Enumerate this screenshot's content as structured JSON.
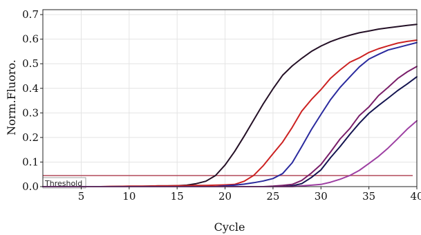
{
  "chart_data": {
    "type": "line",
    "title": "",
    "xlabel": "Cycle",
    "ylabel": "Norm.Fluoro.",
    "xlim": [
      1,
      40
    ],
    "ylim": [
      0,
      0.72
    ],
    "x_ticks": [
      5,
      10,
      15,
      20,
      25,
      30,
      35,
      40
    ],
    "y_ticks": [
      0.0,
      0.1,
      0.2,
      0.3,
      0.4,
      0.5,
      0.6,
      0.7
    ],
    "y_tick_labels": [
      "0.0",
      "0.1",
      "0.2",
      "0.3",
      "0.4",
      "0.5",
      "0.6",
      "0.7"
    ],
    "grid": true,
    "legend": "none",
    "threshold": {
      "label": "Threshold",
      "value": 0.045,
      "color": "#b24a5a"
    },
    "x": [
      1,
      2,
      3,
      4,
      5,
      6,
      7,
      8,
      9,
      10,
      11,
      12,
      13,
      14,
      15,
      16,
      17,
      18,
      19,
      20,
      21,
      22,
      23,
      24,
      25,
      26,
      27,
      28,
      29,
      30,
      31,
      32,
      33,
      34,
      35,
      36,
      37,
      38,
      39,
      40
    ],
    "series": [
      {
        "color": "#241026",
        "values": [
          0,
          0,
          0,
          0,
          0,
          0,
          0,
          0,
          0.001,
          0.001,
          0.001,
          0.002,
          0.003,
          0.003,
          0.004,
          0.006,
          0.012,
          0.022,
          0.045,
          0.088,
          0.143,
          0.206,
          0.272,
          0.338,
          0.398,
          0.453,
          0.491,
          0.522,
          0.55,
          0.572,
          0.59,
          0.604,
          0.616,
          0.626,
          0.633,
          0.641,
          0.646,
          0.651,
          0.656,
          0.66
        ]
      },
      {
        "color": "#cc2222",
        "values": [
          0,
          0,
          0,
          0,
          0,
          0,
          0,
          0.001,
          0.001,
          0.002,
          0.002,
          0.002,
          0.003,
          0.003,
          0.004,
          0.004,
          0.005,
          0.005,
          0.006,
          0.007,
          0.009,
          0.022,
          0.046,
          0.086,
          0.134,
          0.181,
          0.241,
          0.307,
          0.354,
          0.395,
          0.441,
          0.475,
          0.506,
          0.524,
          0.546,
          0.561,
          0.573,
          0.584,
          0.591,
          0.596
        ]
      },
      {
        "color": "#2a2a9e",
        "values": [
          0,
          0,
          0,
          0,
          0,
          0,
          0,
          0,
          0,
          0,
          0,
          0,
          0,
          0,
          0,
          0,
          0,
          0,
          0,
          0.003,
          0.006,
          0.01,
          0.016,
          0.023,
          0.033,
          0.053,
          0.097,
          0.163,
          0.232,
          0.294,
          0.354,
          0.404,
          0.446,
          0.487,
          0.519,
          0.538,
          0.556,
          0.566,
          0.576,
          0.586
        ]
      },
      {
        "color": "#7a1f6a",
        "values": [
          0,
          0,
          0,
          0,
          0,
          0,
          0,
          0,
          0,
          0,
          0,
          0,
          0,
          0,
          0,
          0,
          0,
          0,
          0,
          0,
          0,
          0,
          0,
          0,
          0.002,
          0.005,
          0.009,
          0.025,
          0.055,
          0.09,
          0.141,
          0.194,
          0.236,
          0.289,
          0.324,
          0.37,
          0.404,
          0.44,
          0.467,
          0.489
        ]
      },
      {
        "color": "#141450",
        "values": [
          0,
          0,
          0,
          0,
          0,
          0,
          0,
          0,
          0,
          0,
          0,
          0,
          0,
          0,
          0,
          0,
          0,
          0,
          0,
          0,
          0,
          0,
          0,
          0,
          0,
          0,
          0.003,
          0.012,
          0.037,
          0.068,
          0.118,
          0.163,
          0.212,
          0.258,
          0.298,
          0.33,
          0.36,
          0.391,
          0.418,
          0.447
        ]
      },
      {
        "color": "#9d3fa2",
        "values": [
          0,
          0,
          0,
          0,
          0,
          0,
          0,
          0,
          0,
          0,
          0,
          0,
          0,
          0,
          0,
          0,
          0,
          0,
          0,
          0,
          0,
          0,
          0,
          0,
          0,
          0,
          0,
          0.003,
          0.006,
          0.009,
          0.018,
          0.03,
          0.045,
          0.066,
          0.094,
          0.123,
          0.157,
          0.195,
          0.234,
          0.268
        ]
      }
    ]
  }
}
